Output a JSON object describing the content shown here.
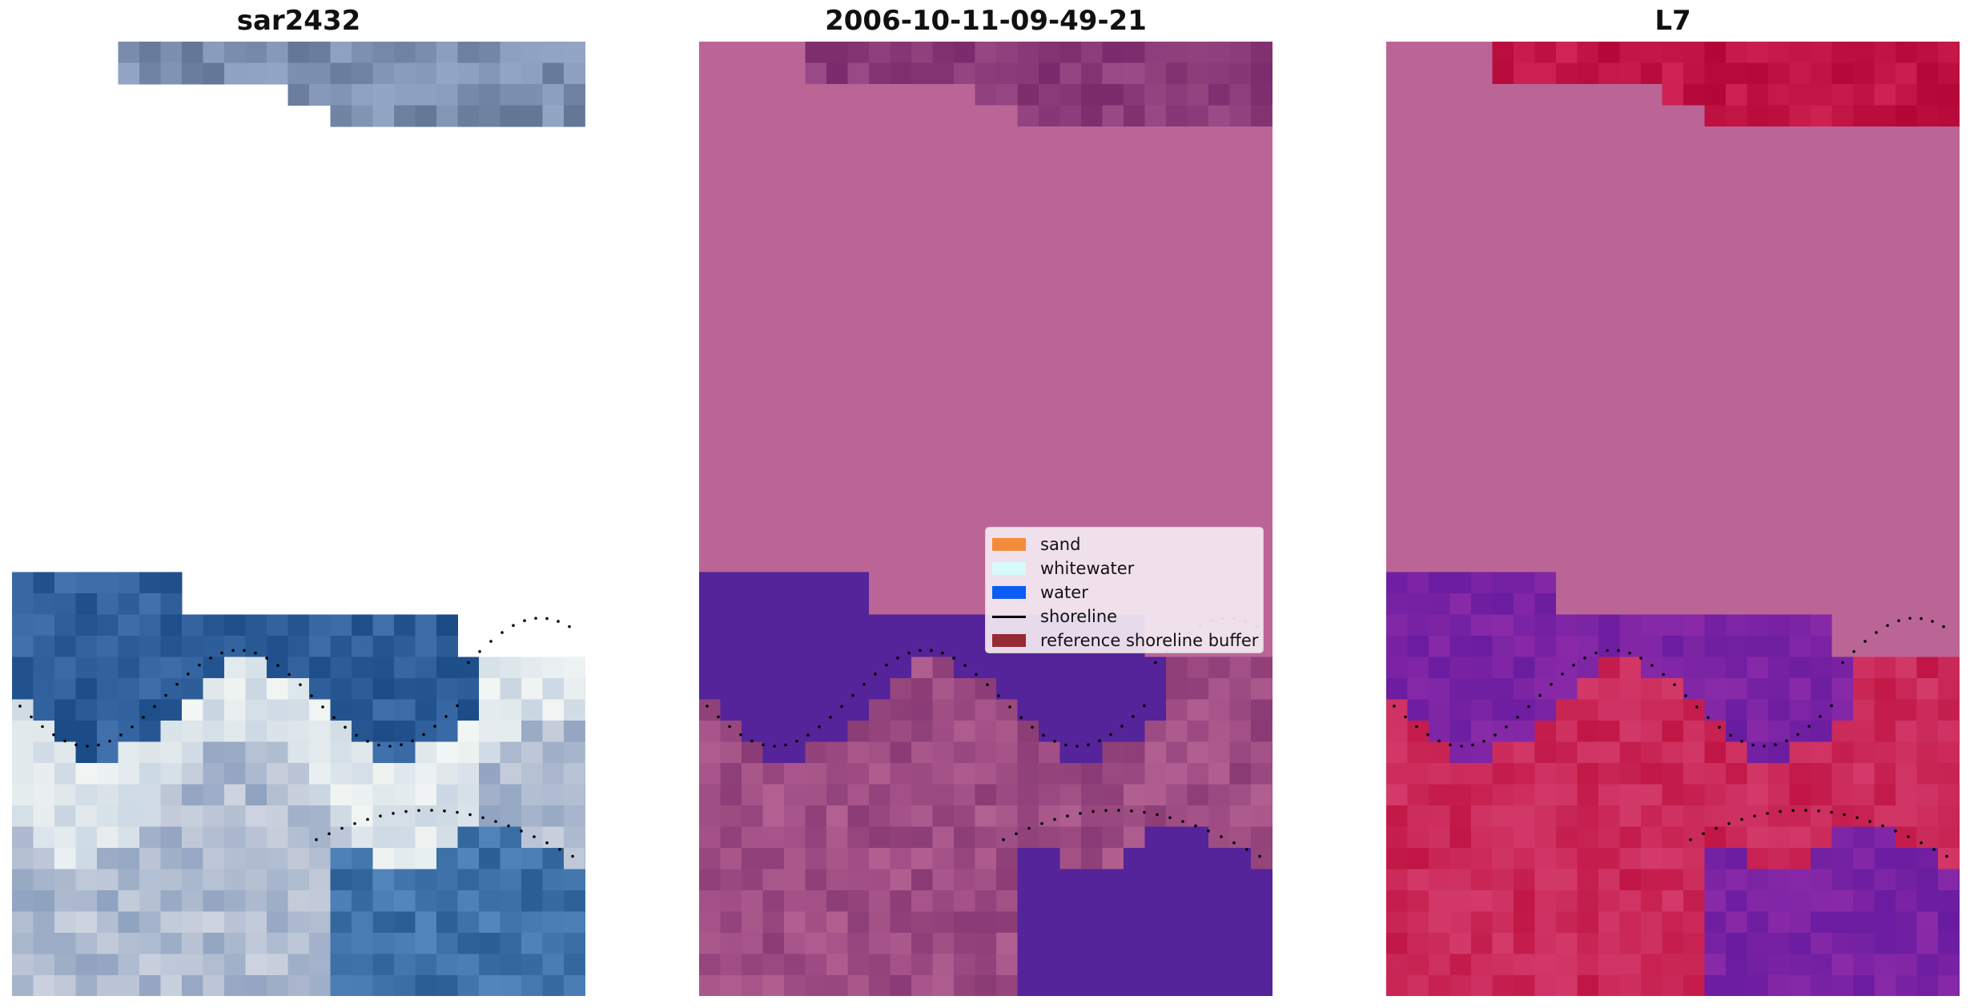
{
  "panels": [
    {
      "title": "sar2432",
      "kind": "rgb"
    },
    {
      "title": "2006-10-11-09-49-21",
      "kind": "classification"
    },
    {
      "title": "L7",
      "kind": "mndwi"
    }
  ],
  "legend": {
    "items": [
      {
        "label": "sand",
        "type": "patch",
        "color": "#f28c3b"
      },
      {
        "label": "whitewater",
        "type": "patch",
        "color": "#d6fafa"
      },
      {
        "label": "water",
        "type": "patch",
        "color": "#0a5cf5"
      },
      {
        "label": "shoreline",
        "type": "line",
        "color": "#000000"
      },
      {
        "label": "reference shoreline buffer",
        "type": "patch",
        "color": "#962a35"
      }
    ]
  },
  "colors": {
    "buffer_pink": "#bb6596",
    "water_purple": "#55239a",
    "land_red": "#c01545",
    "sea_blue": "#2f5f9a",
    "surf_white": "#e6eef2"
  }
}
